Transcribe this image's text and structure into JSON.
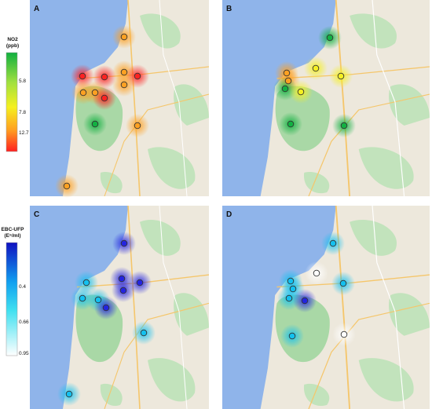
{
  "panels": [
    {
      "label": "A"
    },
    {
      "label": "B"
    },
    {
      "label": "C"
    },
    {
      "label": "D"
    }
  ],
  "legends": [
    {
      "title": "NO2",
      "unit": "(ppb)",
      "ticks": [
        "5.8",
        "7.8",
        "12.7"
      ]
    },
    {
      "title": "EBC-UFP",
      "unit": "(E⁶/ml)",
      "ticks": [
        "0.4",
        "0.66",
        "0.95"
      ]
    }
  ]
}
